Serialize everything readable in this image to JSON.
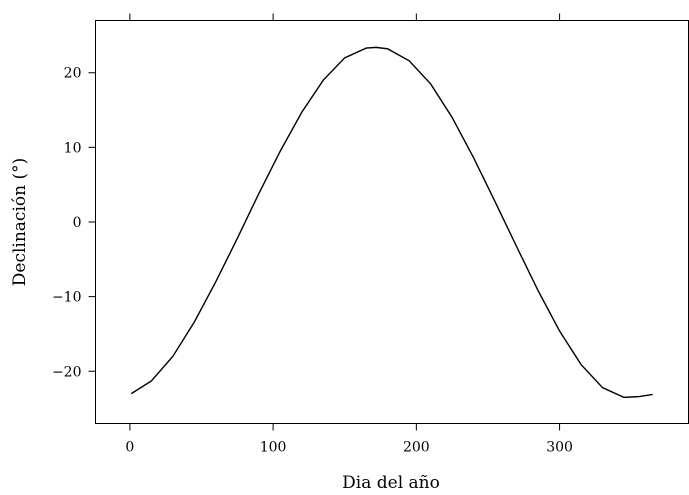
{
  "chart_data": {
    "type": "line",
    "title": "",
    "xlabel": "Dia del año",
    "ylabel": "Declinación (°)",
    "xlim": [
      -24,
      390
    ],
    "ylim": [
      -27,
      27
    ],
    "xticks": [
      0,
      100,
      200,
      300
    ],
    "xtick_labels": [
      "0",
      "100",
      "200",
      "300"
    ],
    "yticks": [
      -20,
      -10,
      0,
      10,
      20
    ],
    "ytick_labels": [
      "−20",
      "−10",
      "0",
      "10",
      "20"
    ],
    "grid": false,
    "legend": "none",
    "series": [
      {
        "x": [
          1,
          15,
          30,
          45,
          60,
          75,
          90,
          105,
          120,
          135,
          150,
          165,
          172,
          180,
          195,
          210,
          225,
          240,
          255,
          270,
          285,
          300,
          315,
          330,
          345,
          355,
          365
        ],
        "y": [
          -23.0,
          -21.3,
          -18.0,
          -13.4,
          -8.0,
          -2.2,
          3.8,
          9.5,
          14.7,
          19.0,
          22.0,
          23.3,
          23.4,
          23.2,
          21.6,
          18.5,
          14.0,
          8.6,
          2.7,
          -3.3,
          -9.2,
          -14.6,
          -19.1,
          -22.2,
          -23.5,
          -23.4,
          -23.1
        ]
      }
    ]
  }
}
